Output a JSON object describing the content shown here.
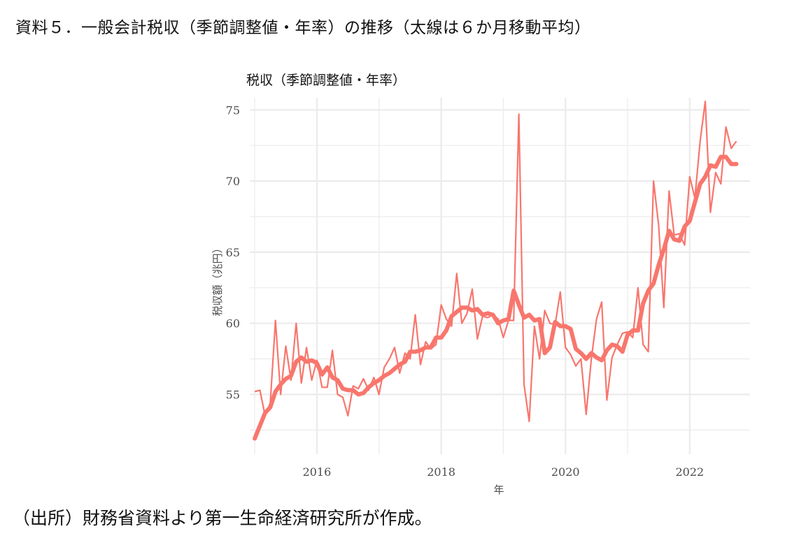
{
  "figure": {
    "title": "資料５．一般会計税収（季節調整値・年率）の推移（太線は６か月移動平均）",
    "source": "（出所）財務省資料より第一生命経済研究所が作成。"
  },
  "chart_data": {
    "type": "line",
    "title": "税収（季節調整値・年率）",
    "xlabel": "年",
    "ylabel": "税収額（兆円）",
    "xlim": [
      2014.92,
      2022.97
    ],
    "ylim": [
      50.8,
      75.85
    ],
    "x_ticks": [
      2016,
      2018,
      2020,
      2022
    ],
    "y_ticks": [
      55,
      60,
      65,
      70,
      75
    ],
    "grid": true,
    "legend": "none",
    "colors": {
      "series": "#f8766d",
      "grid": "#ebebeb"
    },
    "x": [
      2015.0,
      2015.083,
      2015.167,
      2015.25,
      2015.333,
      2015.417,
      2015.5,
      2015.583,
      2015.667,
      2015.75,
      2015.833,
      2015.917,
      2016.0,
      2016.083,
      2016.167,
      2016.25,
      2016.333,
      2016.417,
      2016.5,
      2016.583,
      2016.667,
      2016.75,
      2016.833,
      2016.917,
      2017.0,
      2017.083,
      2017.167,
      2017.25,
      2017.333,
      2017.417,
      2017.5,
      2017.583,
      2017.667,
      2017.75,
      2017.833,
      2017.917,
      2018.0,
      2018.083,
      2018.167,
      2018.25,
      2018.333,
      2018.417,
      2018.5,
      2018.583,
      2018.667,
      2018.75,
      2018.833,
      2018.917,
      2019.0,
      2019.083,
      2019.167,
      2019.25,
      2019.333,
      2019.417,
      2019.5,
      2019.583,
      2019.667,
      2019.75,
      2019.833,
      2019.917,
      2020.0,
      2020.083,
      2020.167,
      2020.25,
      2020.333,
      2020.417,
      2020.5,
      2020.583,
      2020.667,
      2020.75,
      2020.833,
      2020.917,
      2021.0,
      2021.083,
      2021.167,
      2021.25,
      2021.333,
      2021.417,
      2021.5,
      2021.583,
      2021.667,
      2021.75,
      2021.833,
      2021.917,
      2022.0,
      2022.083,
      2022.167,
      2022.25,
      2022.333,
      2022.417,
      2022.5,
      2022.583,
      2022.667,
      2022.75
    ],
    "series": [
      {
        "values": [
          55.2,
          55.3,
          53.5,
          54.4,
          60.2,
          55.0,
          58.4,
          56.0,
          60.0,
          55.8,
          58.3,
          56.0,
          57.4,
          55.5,
          55.5,
          58.1,
          55.0,
          54.8,
          53.5,
          55.6,
          55.4,
          56.1,
          55.3,
          56.2,
          55.0,
          56.9,
          57.5,
          58.3,
          56.5,
          57.9,
          57.5,
          60.6,
          57.1,
          58.7,
          58.2,
          58.5,
          61.3,
          60.3,
          59.8,
          63.5,
          60.0,
          60.7,
          62.4,
          58.9,
          60.5,
          60.4,
          60.6,
          60.3,
          59.0,
          60.2,
          60.2,
          74.7,
          55.7,
          53.1,
          59.8,
          57.5,
          60.9,
          60.0,
          59.9,
          62.2,
          58.3,
          57.8,
          57.0,
          57.5,
          53.6,
          57.5,
          60.3,
          61.5,
          54.6,
          57.6,
          58.5,
          59.3,
          59.4,
          59.0,
          62.5,
          58.5,
          58.0,
          70.0,
          66.9,
          61.1,
          69.3,
          66.2,
          66.3,
          65.5,
          70.3,
          68.8,
          72.8,
          75.6,
          67.8,
          70.6,
          69.8,
          73.8,
          72.3,
          72.8
        ]
      },
      {
        "values": [
          51.9,
          52.8,
          53.7,
          54.1,
          55.2,
          55.7,
          56.1,
          56.3,
          57.3,
          57.6,
          57.3,
          57.4,
          57.2,
          56.4,
          56.9,
          56.2,
          56.0,
          55.4,
          55.3,
          55.3,
          55.0,
          55.1,
          55.5,
          55.8,
          56.0,
          56.3,
          56.5,
          56.8,
          57.1,
          57.3,
          58.0,
          58.0,
          58.1,
          58.3,
          58.3,
          59.0,
          59.0,
          59.5,
          60.5,
          60.8,
          61.1,
          61.1,
          60.9,
          61.0,
          60.6,
          60.7,
          60.6,
          60.0,
          60.2,
          60.3,
          62.3,
          61.3,
          60.4,
          60.6,
          60.2,
          60.3,
          57.9,
          58.3,
          60.1,
          59.8,
          59.8,
          59.6,
          58.2,
          57.9,
          57.5,
          57.9,
          57.6,
          57.4,
          58.1,
          58.5,
          58.4,
          58.0,
          59.2,
          59.5,
          59.5,
          61.4,
          62.3,
          62.8,
          64.1,
          65.2,
          66.5,
          65.9,
          65.8,
          66.8,
          67.2,
          68.5,
          69.8,
          70.3,
          71.1,
          71.0,
          71.7,
          71.7,
          71.2,
          71.2
        ]
      }
    ]
  }
}
